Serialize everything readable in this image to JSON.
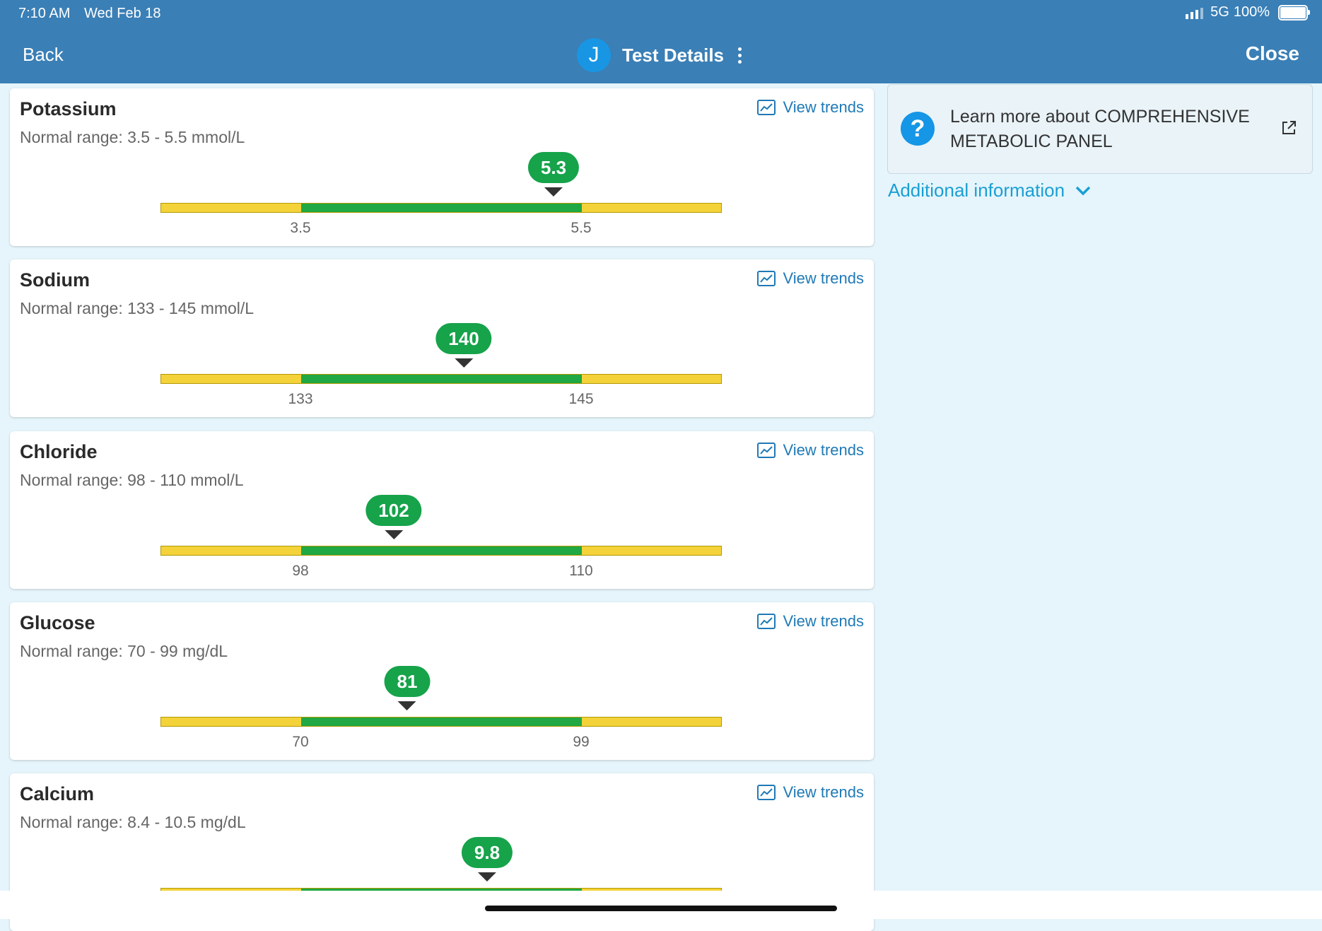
{
  "status": {
    "time": "7:10 AM",
    "date": "Wed Feb 18",
    "network": "5G",
    "battery": "100%"
  },
  "header": {
    "back_label": "Back",
    "avatar_initial": "J",
    "title": "Test Details",
    "close_label": "Close"
  },
  "view_trends_label": "View trends",
  "tests": [
    {
      "name": "Potassium",
      "range": "Normal range: 3.5 - 5.5 mmol/L",
      "value": "5.3",
      "low": "3.5",
      "high": "5.5"
    },
    {
      "name": "Sodium",
      "range": "Normal range: 133 - 145 mmol/L",
      "value": "140",
      "low": "133",
      "high": "145"
    },
    {
      "name": "Chloride",
      "range": "Normal range: 98 - 110 mmol/L",
      "value": "102",
      "low": "98",
      "high": "110"
    },
    {
      "name": "Glucose",
      "range": "Normal range: 70 - 99 mg/dL",
      "value": "81",
      "low": "70",
      "high": "99"
    },
    {
      "name": "Calcium",
      "range": "Normal range: 8.4 - 10.5 mg/dL",
      "value": "9.8",
      "low": "8.4",
      "high": "10.5"
    }
  ],
  "info": {
    "text": "Learn more about COMPREHENSIVE METABOLIC PANEL",
    "additional_label": "Additional information"
  },
  "colors": {
    "header": "#3a7fb6",
    "normal": "#1fa843",
    "out_of_range": "#f4d23a",
    "link": "#1f79b6",
    "accent": "#1a9fd4"
  }
}
